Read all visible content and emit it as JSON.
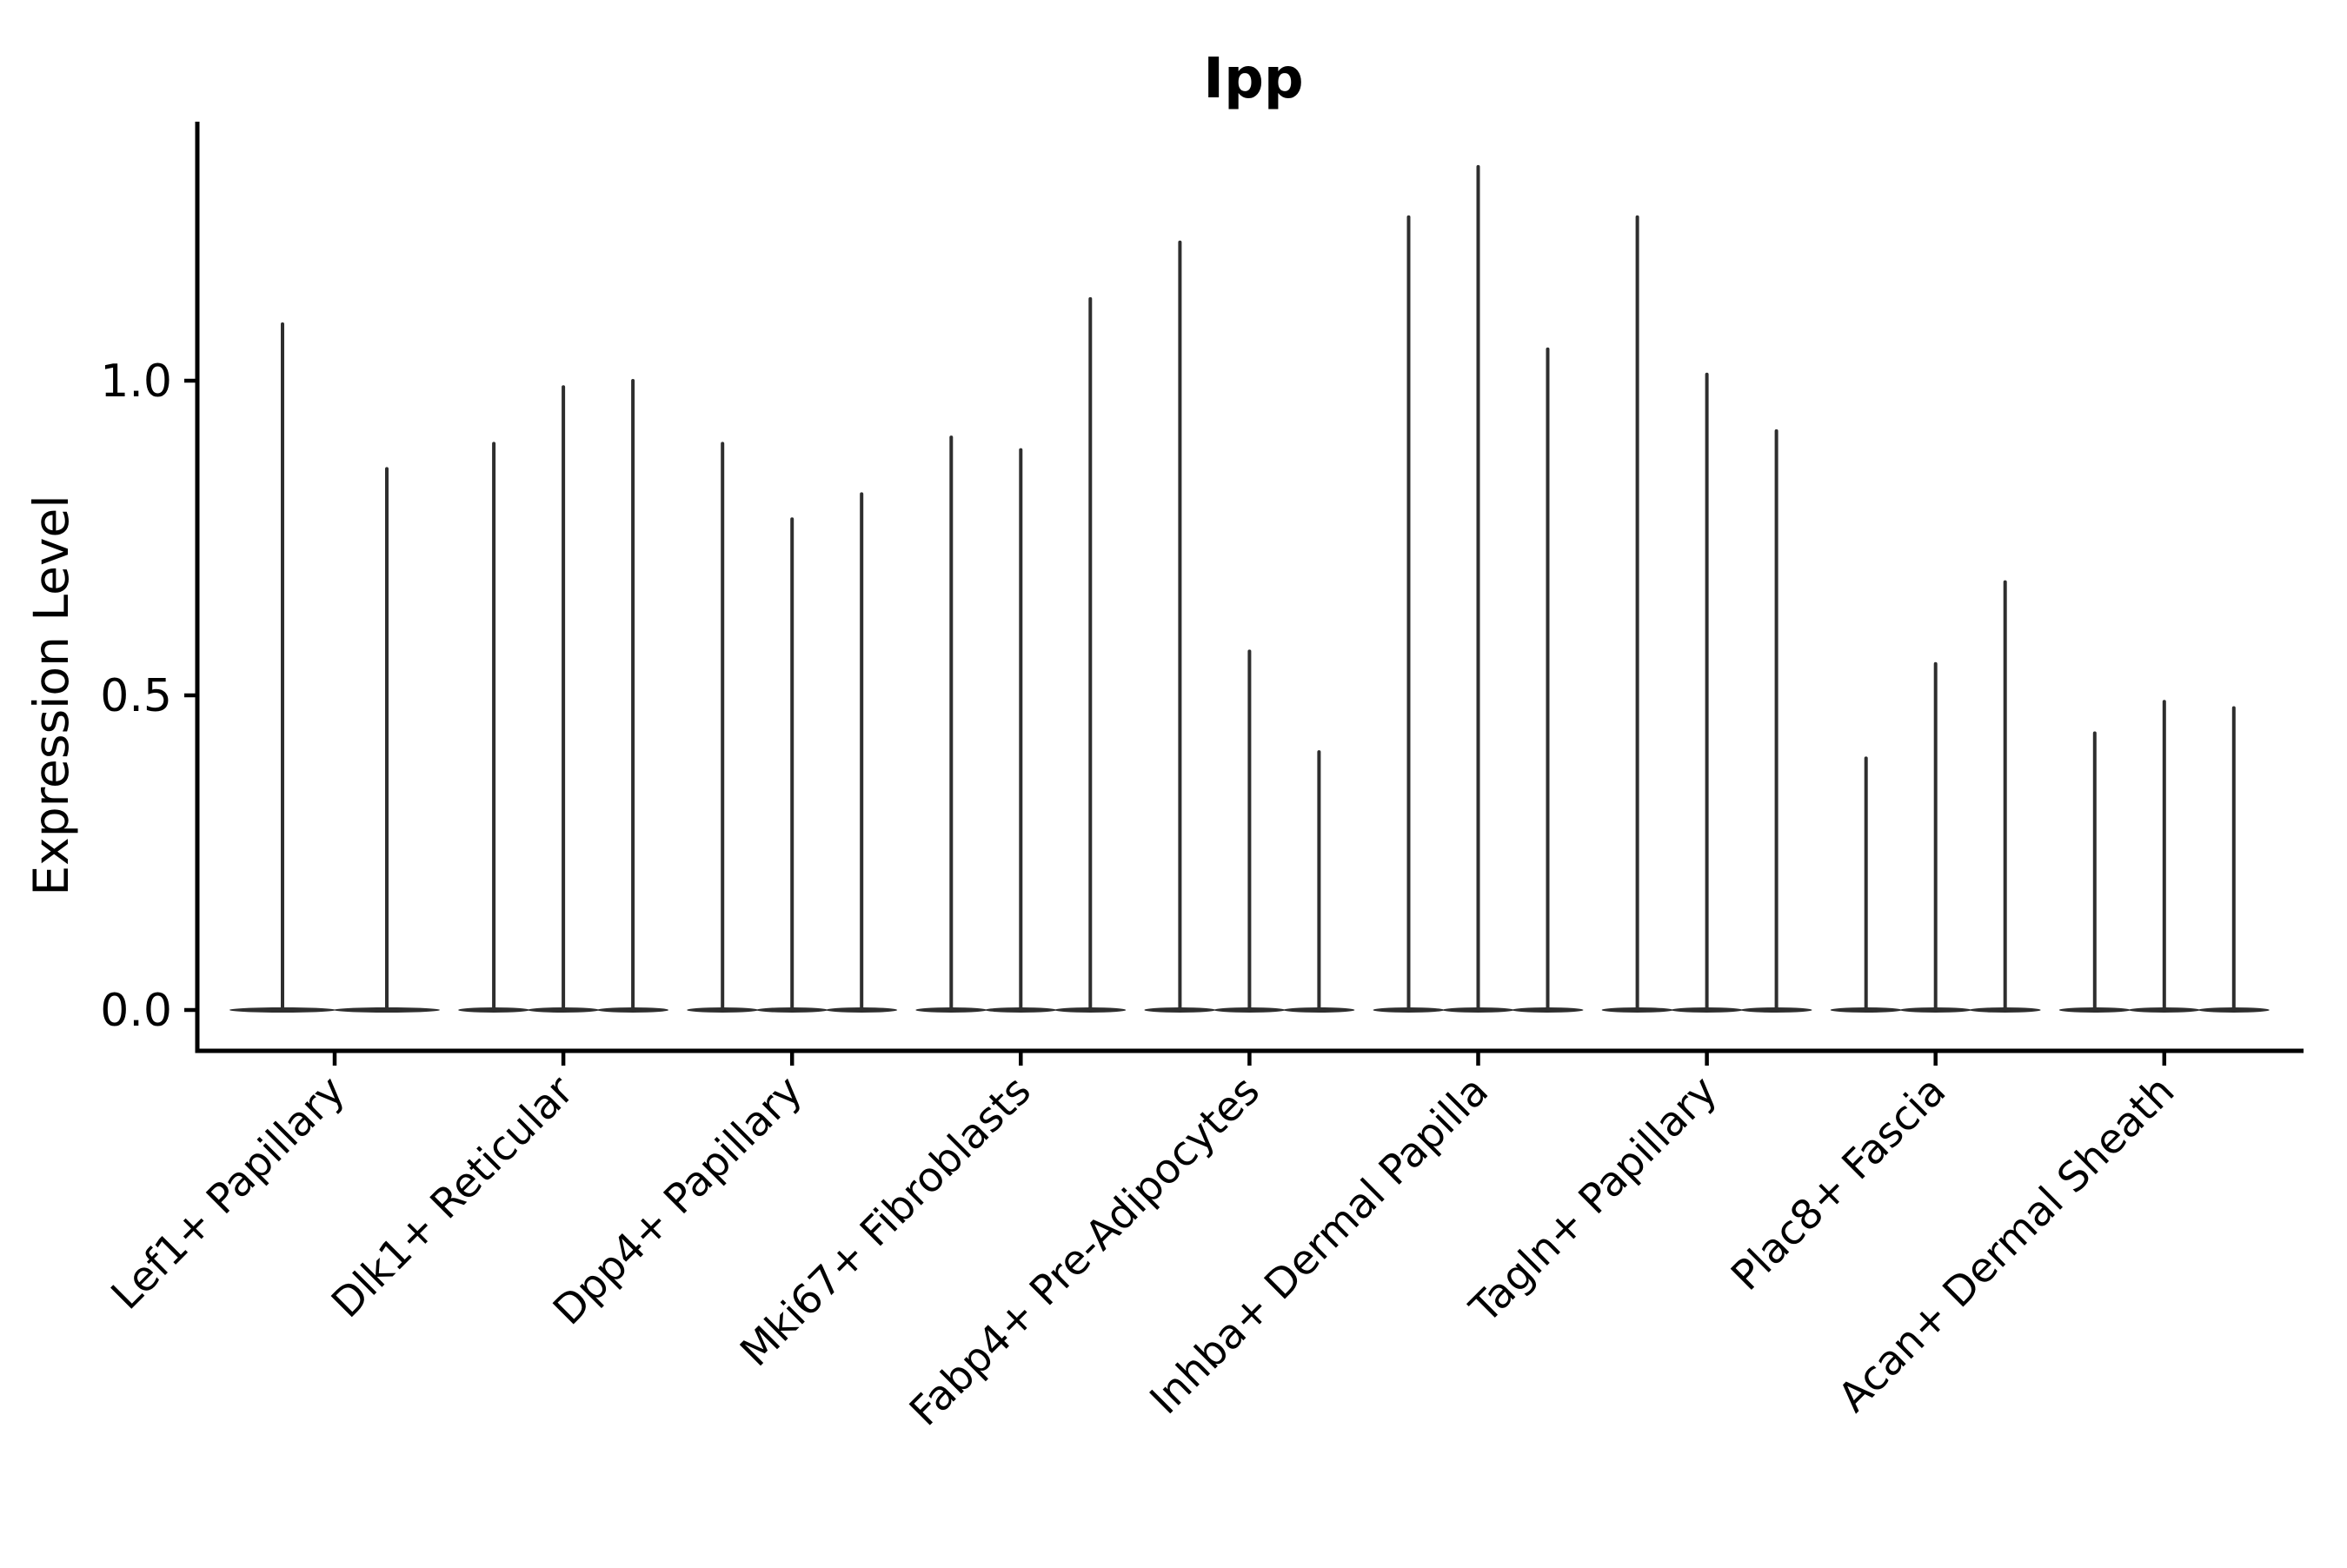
{
  "chart_data": {
    "type": "violin",
    "title": "Ipp",
    "xlabel": "",
    "ylabel": "Expression Level",
    "yticks": [
      0.0,
      0.5,
      1.0
    ],
    "ytick_labels": [
      "0.0",
      "0.5",
      "1.0"
    ],
    "ylim": [
      -0.065,
      1.41
    ],
    "grid": false,
    "legend": "none",
    "categories": [
      "Lef1+ Papillary",
      "Dlk1+ Reticular",
      "Dpp4+ Papillary",
      "Mki67+ Fibroblasts",
      "Fabp4+ Pre-Adipocytes",
      "Inhba+ Dermal Papilla",
      "Tagln+ Papillary",
      "Plac8+ Fascia",
      "Acan+ Dermal Sheath"
    ],
    "groups": [
      {
        "category": "Lef1+ Papillary",
        "spike_maxima": [
          1.09,
          0.86
        ]
      },
      {
        "category": "Dlk1+ Reticular",
        "spike_maxima": [
          0.9,
          0.99,
          1.0
        ]
      },
      {
        "category": "Dpp4+ Papillary",
        "spike_maxima": [
          0.9,
          0.78,
          0.82
        ]
      },
      {
        "category": "Mki67+ Fibroblasts",
        "spike_maxima": [
          0.91,
          0.89,
          1.13
        ]
      },
      {
        "category": "Fabp4+ Pre-Adipocytes",
        "spike_maxima": [
          1.22,
          0.57,
          0.41
        ]
      },
      {
        "category": "Inhba+ Dermal Papilla",
        "spike_maxima": [
          1.26,
          1.34,
          1.05
        ]
      },
      {
        "category": "Tagln+ Papillary",
        "spike_maxima": [
          1.26,
          1.01,
          0.92
        ]
      },
      {
        "category": "Plac8+ Fascia",
        "spike_maxima": [
          0.4,
          0.55,
          0.68
        ]
      },
      {
        "category": "Acan+ Dermal Sheath",
        "spike_maxima": [
          0.44,
          0.49,
          0.48
        ]
      }
    ],
    "violin_baseline_value": 0.0,
    "colors": {
      "violin": "#2e2e2e",
      "axis": "#000000",
      "text": "#000000",
      "background": "#ffffff"
    }
  }
}
